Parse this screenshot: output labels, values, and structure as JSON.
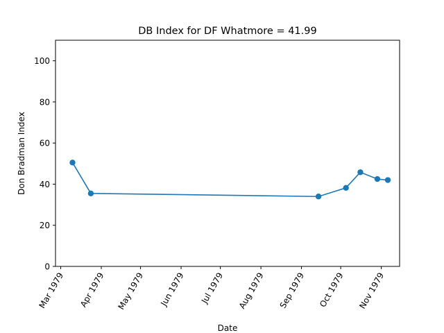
{
  "chart_data": {
    "type": "line",
    "title": "DB Index for DF Whatmore = 41.99",
    "xlabel": "Date",
    "ylabel": "Don Bradman Index",
    "xlim": [
      "1979-02-25",
      "1979-11-15"
    ],
    "ylim": [
      0,
      110
    ],
    "x_ticks": [
      {
        "date": "1979-03-01",
        "label": "Mar 1979"
      },
      {
        "date": "1979-04-01",
        "label": "Apr 1979"
      },
      {
        "date": "1979-05-01",
        "label": "May 1979"
      },
      {
        "date": "1979-06-01",
        "label": "Jun 1979"
      },
      {
        "date": "1979-07-01",
        "label": "Jul 1979"
      },
      {
        "date": "1979-08-01",
        "label": "Aug 1979"
      },
      {
        "date": "1979-09-01",
        "label": "Sep 1979"
      },
      {
        "date": "1979-10-01",
        "label": "Oct 1979"
      },
      {
        "date": "1979-11-01",
        "label": "Nov 1979"
      }
    ],
    "y_ticks": [
      0,
      20,
      40,
      60,
      80,
      100
    ],
    "grid": false,
    "series": [
      {
        "name": "",
        "color": "#1f77b4",
        "x": [
          "1979-03-10",
          "1979-03-24",
          "1979-09-14",
          "1979-10-05",
          "1979-10-16",
          "1979-10-29",
          "1979-11-06"
        ],
        "y": [
          50.5,
          35.5,
          34.0,
          38.2,
          45.8,
          42.5,
          42.0
        ]
      }
    ]
  }
}
